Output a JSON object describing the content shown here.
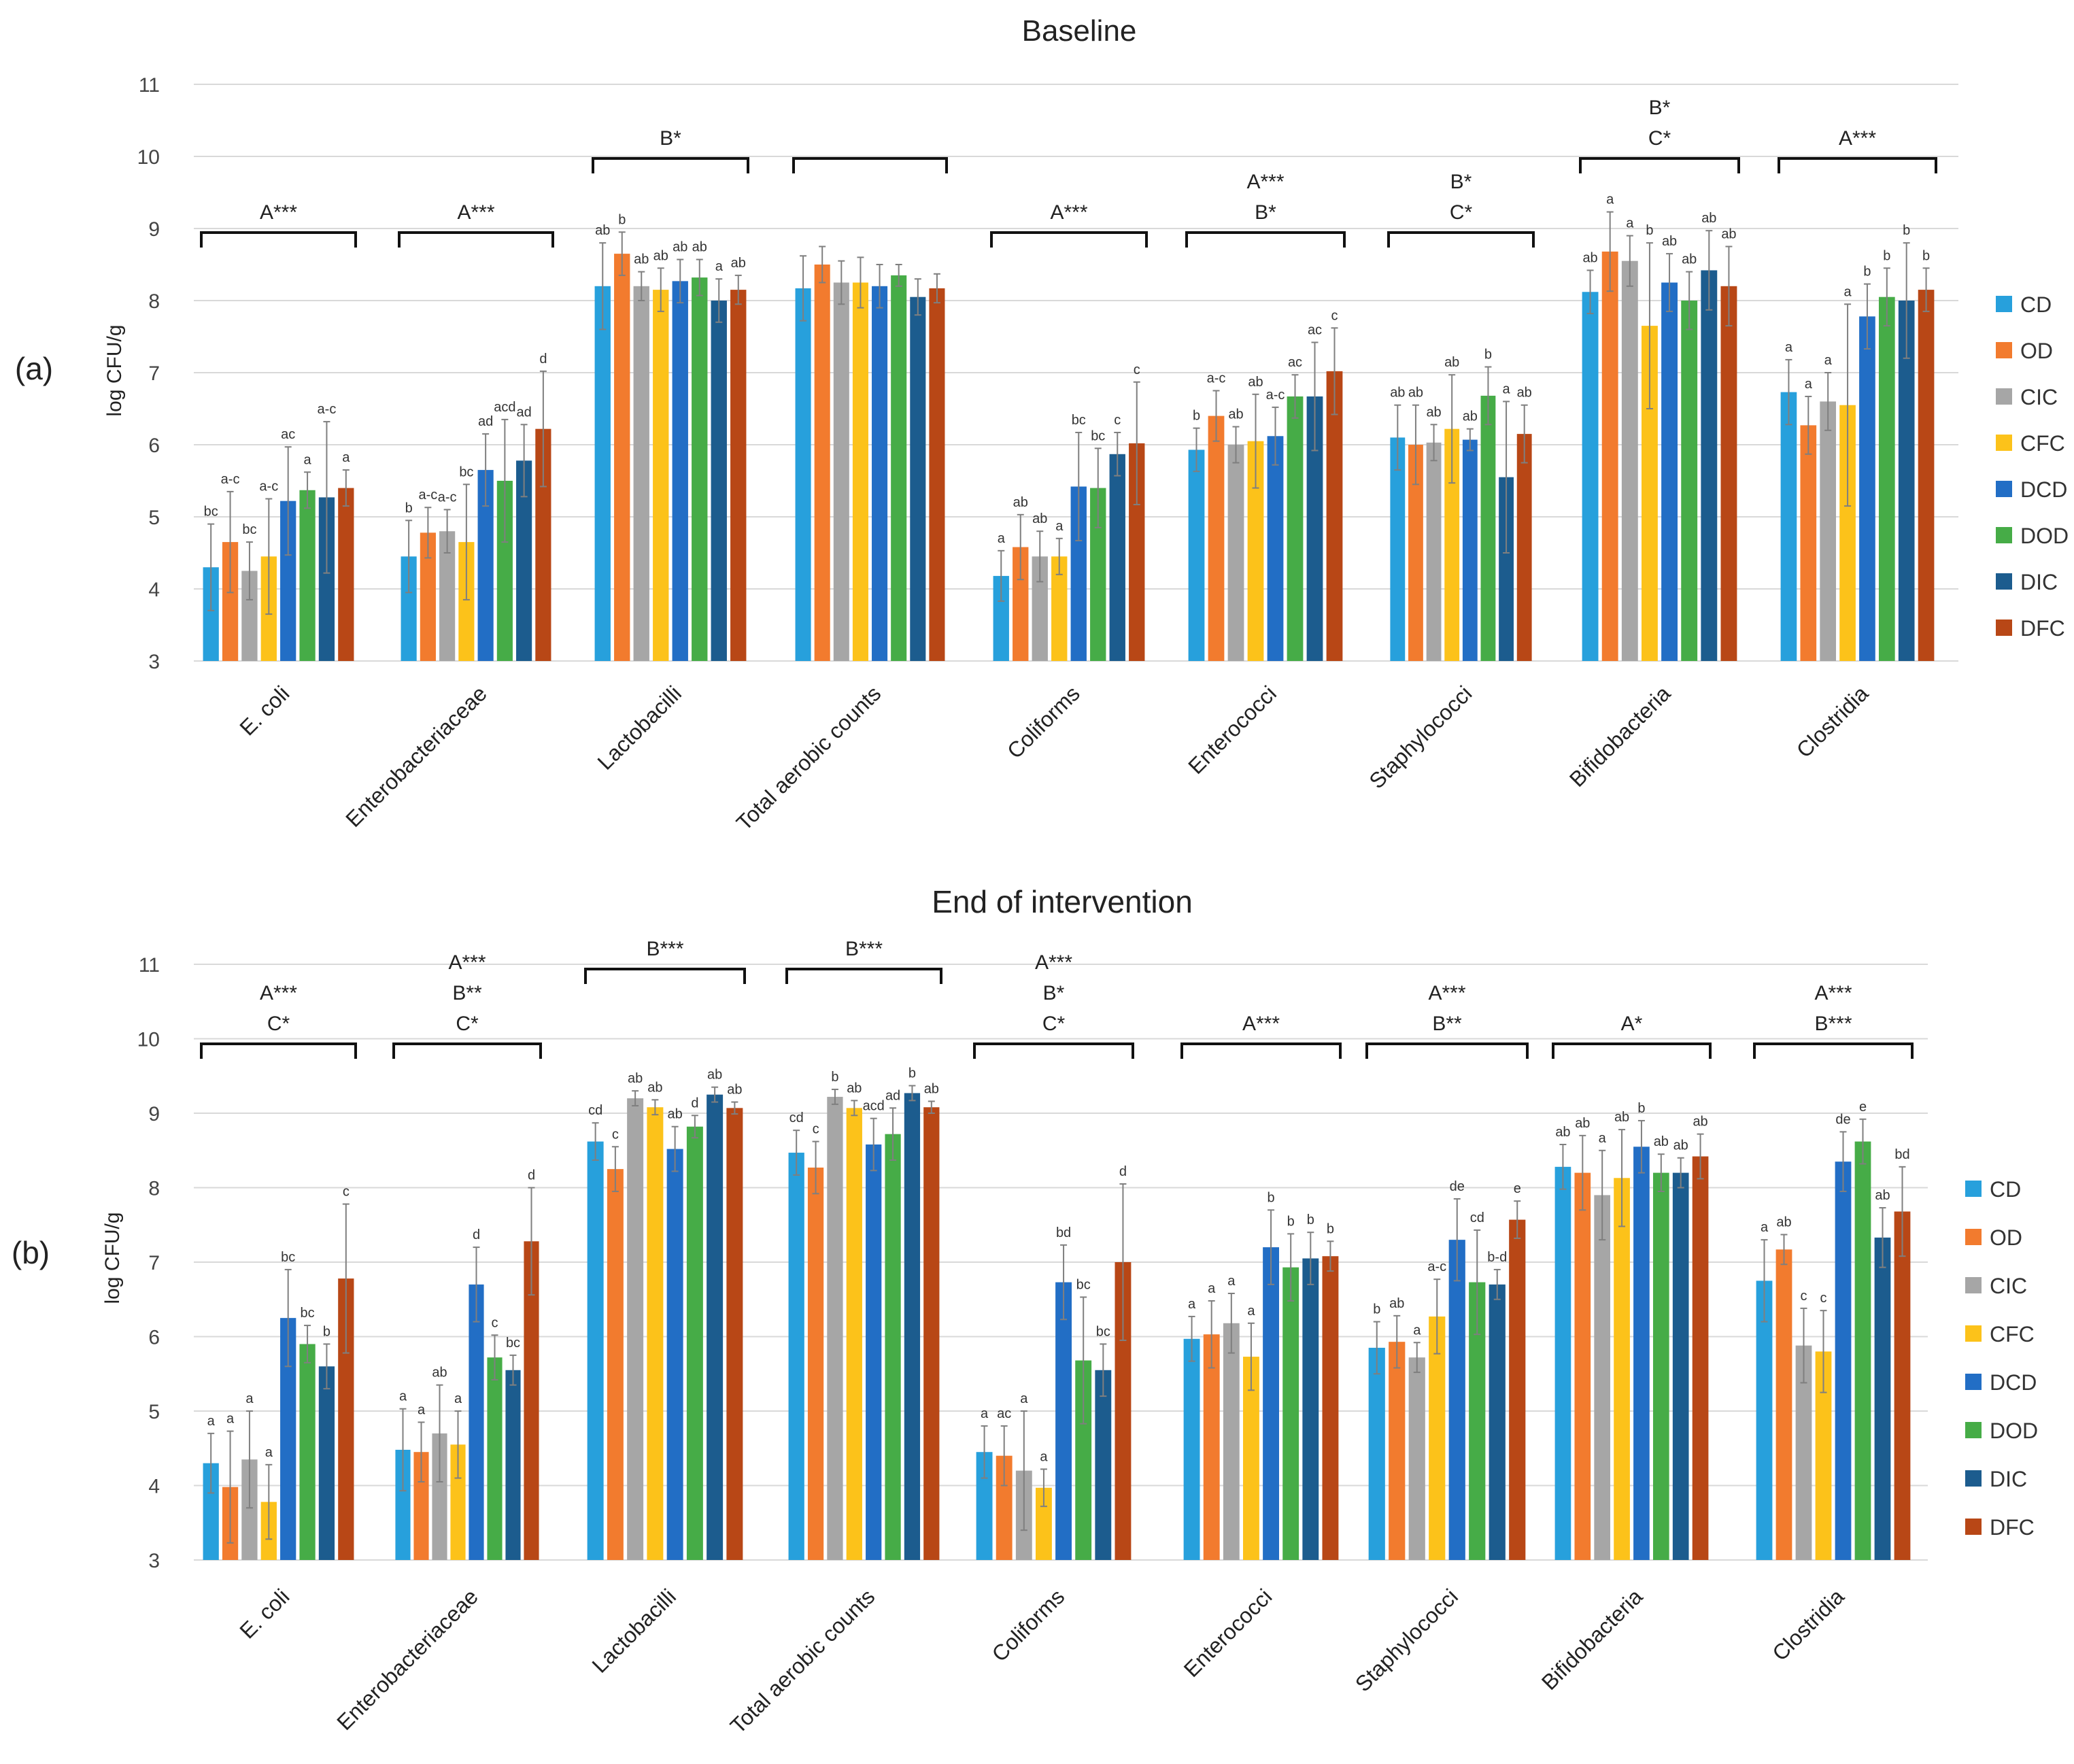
{
  "figure": {
    "panels": [
      {
        "label": "(a)",
        "title": "Baseline",
        "ylabel": "log CFU/g"
      },
      {
        "label": "(b)",
        "title": "End of intervention",
        "ylabel": "log CFU/g"
      }
    ],
    "legend": [
      "CD",
      "OD",
      "CIC",
      "CFC",
      "DCD",
      "DOD",
      "DIC",
      "DFC"
    ],
    "colors": {
      "CD": "#27a0dc",
      "OD": "#f27b2e",
      "CIC": "#a6a6a6",
      "CFC": "#fcc21a",
      "DCD": "#226ec5",
      "DOD": "#46ac47",
      "DIC": "#1c5c8e",
      "DFC": "#b84716"
    }
  },
  "chart_data": [
    {
      "type": "bar",
      "title": "Baseline",
      "panel_label": "(a)",
      "ylabel": "log CFU/g",
      "ylim": [
        3,
        11
      ],
      "yticks": [
        3,
        4,
        5,
        6,
        7,
        8,
        9,
        10,
        11
      ],
      "grid": true,
      "legend_position": "right",
      "categories": [
        "E. coli",
        "Enterobacteriaceae",
        "Lactobacilli",
        "Total aerobic counts",
        "Coliforms",
        "Enterococci",
        "Staphylococci",
        "Bifidobacteria",
        "Clostridia"
      ],
      "series": [
        {
          "name": "CD",
          "values": [
            4.3,
            4.45,
            8.2,
            8.17,
            4.18,
            5.93,
            6.1,
            8.12,
            6.73
          ],
          "errors": [
            0.6,
            0.5,
            0.6,
            0.45,
            0.35,
            0.3,
            0.45,
            0.3,
            0.45
          ],
          "letters": [
            "bc",
            "b",
            "ab",
            "",
            "a",
            "b",
            "ab",
            "ab",
            "a"
          ]
        },
        {
          "name": "OD",
          "values": [
            4.65,
            4.78,
            8.65,
            8.5,
            4.58,
            6.4,
            6.0,
            8.68,
            6.27
          ],
          "errors": [
            0.7,
            0.35,
            0.3,
            0.25,
            0.45,
            0.35,
            0.55,
            0.55,
            0.4
          ],
          "letters": [
            "a-c",
            "a-c",
            "b",
            "",
            "ab",
            "a-c",
            "ab",
            "a",
            "a"
          ]
        },
        {
          "name": "CIC",
          "values": [
            4.25,
            4.8,
            8.2,
            8.25,
            4.45,
            6.0,
            6.03,
            8.55,
            6.6
          ],
          "errors": [
            0.4,
            0.3,
            0.2,
            0.3,
            0.35,
            0.25,
            0.25,
            0.35,
            0.4
          ],
          "letters": [
            "bc",
            "a-c",
            "ab",
            "",
            "ab",
            "ab",
            "ab",
            "a",
            "a"
          ]
        },
        {
          "name": "CFC",
          "values": [
            4.45,
            4.65,
            8.15,
            8.25,
            4.45,
            6.05,
            6.22,
            7.65,
            6.55
          ],
          "errors": [
            0.8,
            0.8,
            0.3,
            0.35,
            0.25,
            0.65,
            0.75,
            1.15,
            1.4
          ],
          "letters": [
            "a-c",
            "bc",
            "ab",
            "",
            "a",
            "ab",
            "ab",
            "b",
            "a"
          ]
        },
        {
          "name": "DCD",
          "values": [
            5.22,
            5.65,
            8.27,
            8.2,
            5.42,
            6.12,
            6.07,
            8.25,
            7.78
          ],
          "errors": [
            0.75,
            0.5,
            0.3,
            0.3,
            0.75,
            0.4,
            0.15,
            0.4,
            0.45
          ],
          "letters": [
            "ac",
            "ad",
            "ab",
            "",
            "bc",
            "a-c",
            "ab",
            "ab",
            "b"
          ]
        },
        {
          "name": "DOD",
          "values": [
            5.37,
            5.5,
            8.32,
            8.35,
            5.4,
            6.67,
            6.68,
            8.0,
            8.05
          ],
          "errors": [
            0.25,
            0.85,
            0.25,
            0.15,
            0.55,
            0.3,
            0.4,
            0.4,
            0.4
          ],
          "letters": [
            "a",
            "acd",
            "ab",
            "",
            "bc",
            "ac",
            "b",
            "ab",
            "b"
          ]
        },
        {
          "name": "DIC",
          "values": [
            5.27,
            5.78,
            8.0,
            8.05,
            5.87,
            6.67,
            5.55,
            8.42,
            8.0
          ],
          "errors": [
            1.05,
            0.5,
            0.3,
            0.25,
            0.3,
            0.75,
            1.05,
            0.55,
            0.8
          ],
          "letters": [
            "a-c",
            "ad",
            "a",
            "",
            "c",
            "ac",
            "a",
            "ab",
            "b"
          ]
        },
        {
          "name": "DFC",
          "values": [
            5.4,
            6.22,
            8.15,
            8.17,
            6.02,
            7.02,
            6.15,
            8.2,
            8.15
          ],
          "errors": [
            0.25,
            0.8,
            0.2,
            0.2,
            0.85,
            0.6,
            0.4,
            0.55,
            0.3
          ],
          "letters": [
            "a",
            "d",
            "ab",
            "",
            "c",
            "c",
            "ab",
            "ab",
            "b"
          ]
        }
      ],
      "significance": [
        {
          "labels": [
            "A***"
          ]
        },
        {
          "labels": [
            "A***"
          ]
        },
        {
          "labels": [
            "B*"
          ]
        },
        {
          "labels": []
        },
        {
          "labels": [
            "A***"
          ]
        },
        {
          "labels": [
            "A***",
            "B*"
          ]
        },
        {
          "labels": [
            "B*",
            "C*"
          ]
        },
        {
          "labels": [
            "B*",
            "C*"
          ]
        },
        {
          "labels": [
            "A***"
          ]
        }
      ]
    },
    {
      "type": "bar",
      "title": "End of intervention",
      "panel_label": "(b)",
      "ylabel": "log CFU/g",
      "ylim": [
        3,
        11
      ],
      "yticks": [
        3,
        4,
        5,
        6,
        7,
        8,
        9,
        10,
        11
      ],
      "grid": true,
      "legend_position": "right",
      "categories": [
        "E. coli",
        "Enterobacteriaceae",
        "Lactobacilli",
        "Total aerobic counts",
        "Coliforms",
        "Enterococci",
        "Staphylococci",
        "Bifidobacteria",
        "Clostridia"
      ],
      "series": [
        {
          "name": "CD",
          "values": [
            4.3,
            4.48,
            8.62,
            8.47,
            4.45,
            5.97,
            5.85,
            8.28,
            6.75
          ],
          "errors": [
            0.4,
            0.55,
            0.25,
            0.3,
            0.35,
            0.3,
            0.35,
            0.3,
            0.55
          ],
          "letters": [
            "a",
            "a",
            "cd",
            "cd",
            "a",
            "a",
            "b",
            "ab",
            "a"
          ]
        },
        {
          "name": "OD",
          "values": [
            3.98,
            4.45,
            8.25,
            8.27,
            4.4,
            6.03,
            5.93,
            8.2,
            7.17
          ],
          "errors": [
            0.75,
            0.4,
            0.3,
            0.35,
            0.4,
            0.45,
            0.35,
            0.5,
            0.2
          ],
          "letters": [
            "a",
            "a",
            "c",
            "c",
            "ac",
            "a",
            "ab",
            "ab",
            "ab"
          ]
        },
        {
          "name": "CIC",
          "values": [
            4.35,
            4.7,
            9.2,
            9.22,
            4.2,
            6.18,
            5.72,
            7.9,
            5.88
          ],
          "errors": [
            0.65,
            0.65,
            0.1,
            0.1,
            0.8,
            0.4,
            0.2,
            0.6,
            0.5
          ],
          "letters": [
            "a",
            "ab",
            "ab",
            "b",
            "a",
            "a",
            "a",
            "a",
            "c"
          ]
        },
        {
          "name": "CFC",
          "values": [
            3.78,
            4.55,
            9.08,
            9.07,
            3.97,
            5.73,
            6.27,
            8.13,
            5.8
          ],
          "errors": [
            0.5,
            0.45,
            0.1,
            0.1,
            0.25,
            0.45,
            0.5,
            0.65,
            0.55
          ],
          "letters": [
            "a",
            "a",
            "ab",
            "ab",
            "a",
            "a",
            "a-c",
            "ab",
            "c"
          ]
        },
        {
          "name": "DCD",
          "values": [
            6.25,
            6.7,
            8.52,
            8.58,
            6.73,
            7.2,
            7.3,
            8.55,
            8.35
          ],
          "errors": [
            0.65,
            0.5,
            0.3,
            0.35,
            0.5,
            0.5,
            0.55,
            0.35,
            0.4
          ],
          "letters": [
            "bc",
            "d",
            "ab",
            "acd",
            "bd",
            "b",
            "de",
            "b",
            "de"
          ]
        },
        {
          "name": "DOD",
          "values": [
            5.9,
            5.72,
            8.82,
            8.72,
            5.68,
            6.93,
            6.73,
            8.2,
            8.62
          ],
          "errors": [
            0.25,
            0.3,
            0.15,
            0.35,
            0.85,
            0.45,
            0.7,
            0.25,
            0.3
          ],
          "letters": [
            "bc",
            "c",
            "d",
            "ad",
            "bc",
            "b",
            "cd",
            "ab",
            "e"
          ]
        },
        {
          "name": "DIC",
          "values": [
            5.6,
            5.55,
            9.25,
            9.27,
            5.55,
            7.05,
            6.7,
            8.2,
            7.33
          ],
          "errors": [
            0.3,
            0.2,
            0.1,
            0.1,
            0.35,
            0.35,
            0.2,
            0.2,
            0.4
          ],
          "letters": [
            "b",
            "bc",
            "ab",
            "b",
            "bc",
            "b",
            "b-d",
            "ab",
            "ab"
          ]
        },
        {
          "name": "DFC",
          "values": [
            6.78,
            7.28,
            9.07,
            9.08,
            7.0,
            7.08,
            7.57,
            8.42,
            7.68
          ],
          "errors": [
            1.0,
            0.72,
            0.08,
            0.08,
            1.05,
            0.2,
            0.25,
            0.3,
            0.6
          ],
          "letters": [
            "c",
            "d",
            "ab",
            "ab",
            "d",
            "b",
            "e",
            "ab",
            "bd"
          ]
        }
      ],
      "significance": [
        {
          "labels": [
            "A***",
            "C*"
          ]
        },
        {
          "labels": [
            "A***",
            "B**",
            "C*"
          ]
        },
        {
          "labels": [
            "B***"
          ]
        },
        {
          "labels": [
            "B***"
          ]
        },
        {
          "labels": [
            "A***",
            "B*",
            "C*"
          ]
        },
        {
          "labels": [
            "A***"
          ]
        },
        {
          "labels": [
            "A***",
            "B**"
          ]
        },
        {
          "labels": [
            "A*"
          ]
        },
        {
          "labels": [
            "A***",
            "B***"
          ]
        }
      ]
    }
  ]
}
